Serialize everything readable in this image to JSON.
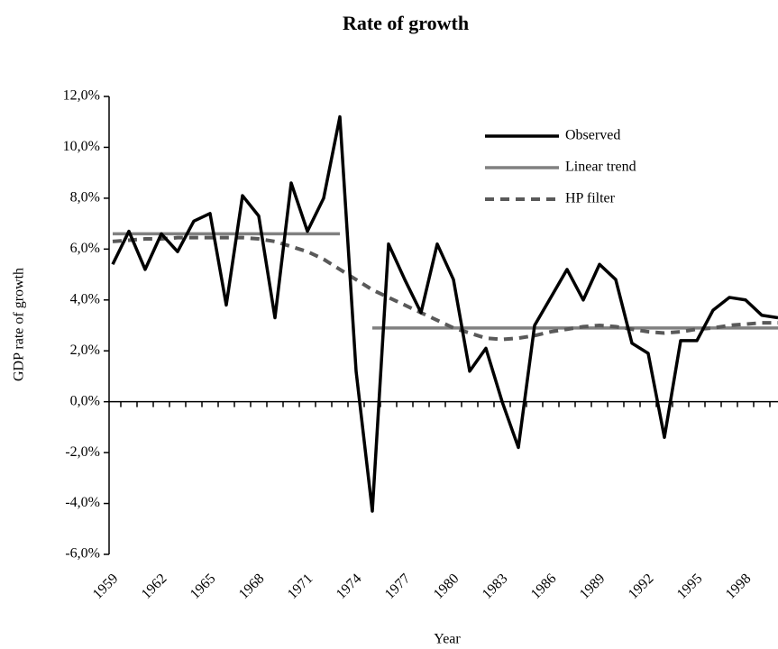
{
  "chart_data": {
    "type": "line",
    "title": "Rate of growth",
    "x_label": "Year",
    "y_label": "GDP rate of growth",
    "categories": [
      "1959",
      null,
      null,
      "1962",
      null,
      null,
      "1965",
      null,
      null,
      "1968",
      null,
      null,
      "1971",
      null,
      null,
      "1974",
      null,
      null,
      "1977",
      null,
      null,
      "1980",
      null,
      null,
      "1983",
      null,
      null,
      "1986",
      null,
      null,
      "1989",
      null,
      null,
      "1992",
      null,
      null,
      "1995",
      null,
      null,
      "1998",
      null,
      null
    ],
    "series": [
      {
        "name": "Observed",
        "color": "#000000",
        "style": "solid",
        "values": [
          5.4,
          6.7,
          5.2,
          6.6,
          5.9,
          7.1,
          7.4,
          3.8,
          8.1,
          7.3,
          3.3,
          8.6,
          6.7,
          8.0,
          11.2,
          1.2,
          -4.3,
          6.2,
          4.8,
          3.5,
          6.2,
          4.8,
          1.2,
          2.1,
          0.0,
          -1.8,
          3.0,
          4.1,
          5.2,
          4.0,
          5.4,
          4.8,
          2.3,
          1.9,
          -1.4,
          2.4,
          2.4,
          3.6,
          4.1,
          4.0,
          3.4,
          3.3
        ]
      },
      {
        "name": "Linear trend",
        "color": "#808080",
        "style": "solid",
        "values": [
          6.6,
          6.6,
          6.6,
          6.6,
          6.6,
          6.6,
          6.6,
          6.6,
          6.6,
          6.6,
          6.6,
          6.6,
          6.6,
          6.6,
          6.6,
          null,
          2.9,
          2.9,
          2.9,
          2.9,
          2.9,
          2.9,
          2.9,
          2.9,
          2.9,
          2.9,
          2.9,
          2.9,
          2.9,
          2.9,
          2.9,
          2.9,
          2.9,
          2.9,
          2.9,
          2.9,
          2.9,
          2.9,
          2.9,
          2.9,
          2.9,
          2.9
        ]
      },
      {
        "name": "HP filter",
        "color": "#595959",
        "style": "dashed",
        "values": [
          6.3,
          6.35,
          6.4,
          6.4,
          6.45,
          6.45,
          6.45,
          6.45,
          6.45,
          6.4,
          6.3,
          6.1,
          5.9,
          5.6,
          5.2,
          4.8,
          4.4,
          4.1,
          3.8,
          3.5,
          3.2,
          2.9,
          2.7,
          2.5,
          2.45,
          2.5,
          2.6,
          2.75,
          2.85,
          2.95,
          3.0,
          2.95,
          2.85,
          2.75,
          2.7,
          2.75,
          2.85,
          2.9,
          3.0,
          3.05,
          3.1,
          3.1
        ]
      }
    ],
    "ylim": [
      -6,
      12
    ],
    "yticks": [
      {
        "value": -6,
        "label": "-6,0%"
      },
      {
        "value": -4,
        "label": "-4,0%"
      },
      {
        "value": -2,
        "label": "-2,0%"
      },
      {
        "value": 0,
        "label": "0,0%"
      },
      {
        "value": 2,
        "label": "2,0%"
      },
      {
        "value": 4,
        "label": "4,0%"
      },
      {
        "value": 6,
        "label": "6,0%"
      },
      {
        "value": 8,
        "label": "8,0%"
      },
      {
        "value": 10,
        "label": "10,0%"
      },
      {
        "value": 12,
        "label": "12,0%"
      }
    ],
    "grid": false,
    "legend": "upper right"
  }
}
